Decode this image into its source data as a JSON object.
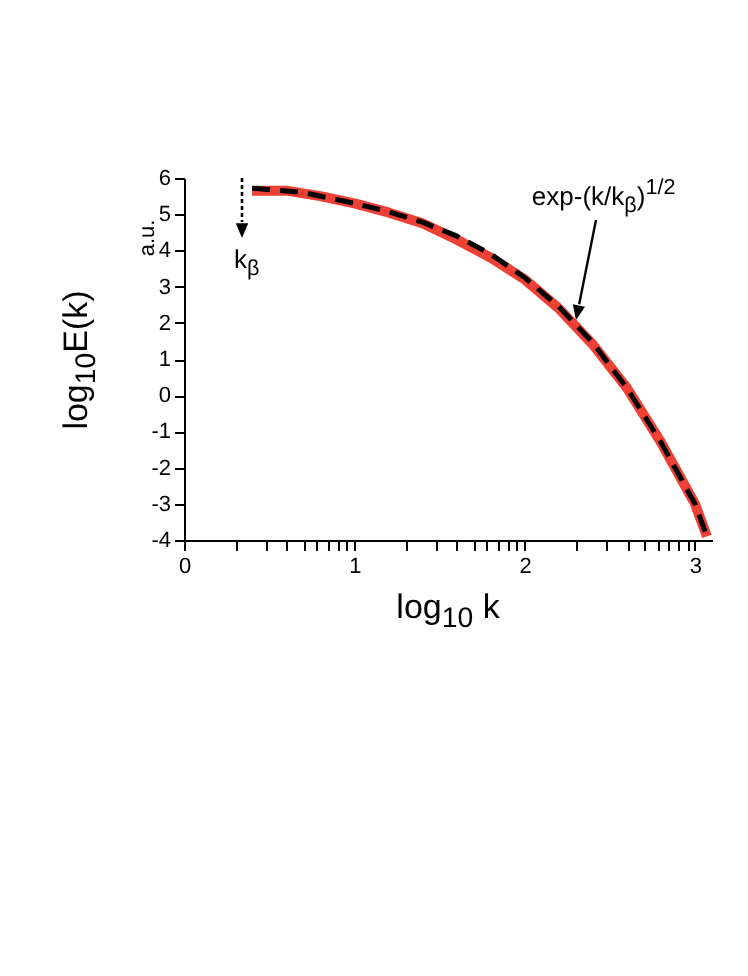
{
  "chart_data": {
    "type": "line",
    "xlabel": "log$_{10}$ k",
    "ylabel": "log$_{10}$E(k)",
    "xlim": [
      0,
      3.1
    ],
    "ylim": [
      -4,
      6
    ],
    "xticks": [
      0,
      {
        "value": 0.301,
        "label": null
      },
      {
        "value": 0.477,
        "label": null
      },
      {
        "value": 0.602,
        "label": null
      },
      {
        "value": 0.699,
        "label": null
      },
      {
        "value": 0.778,
        "label": null
      },
      {
        "value": 0.845,
        "label": null
      },
      {
        "value": 0.903,
        "label": null
      },
      {
        "value": 0.954,
        "label": null
      },
      1,
      {
        "value": 1.301,
        "label": null
      },
      {
        "value": 1.477,
        "label": null
      },
      {
        "value": 1.602,
        "label": null
      },
      {
        "value": 1.699,
        "label": null
      },
      {
        "value": 1.778,
        "label": null
      },
      {
        "value": 1.845,
        "label": null
      },
      {
        "value": 1.903,
        "label": null
      },
      {
        "value": 1.954,
        "label": null
      },
      2,
      {
        "value": 2.301,
        "label": null
      },
      {
        "value": 2.477,
        "label": null
      },
      {
        "value": 2.602,
        "label": null
      },
      {
        "value": 2.699,
        "label": null
      },
      {
        "value": 2.778,
        "label": null
      },
      {
        "value": 2.845,
        "label": null
      },
      {
        "value": 2.903,
        "label": null
      },
      {
        "value": 2.954,
        "label": null
      },
      3
    ],
    "yticks": [
      -4,
      -3,
      -2,
      -1,
      0,
      1,
      2,
      3,
      4,
      5,
      6
    ],
    "grid": false,
    "marker": "none",
    "series": [
      {
        "color": "#ee4035",
        "line_style": "solid",
        "x": [
          0.4,
          0.6,
          0.8,
          1.0,
          1.2,
          1.4,
          1.6,
          1.8,
          2.0,
          2.2,
          2.4,
          2.6,
          2.8,
          3.0,
          3.07
        ],
        "values": [
          5.65,
          5.65,
          5.5,
          5.3,
          5.05,
          4.75,
          4.3,
          3.8,
          3.2,
          2.4,
          1.4,
          0.2,
          -1.3,
          -3.0,
          -3.9
        ]
      },
      {
        "color": "#000000",
        "line_style": "dashed",
        "x": [
          0.4,
          0.7,
          1.0,
          1.2,
          1.4,
          1.6,
          1.8,
          2.0,
          2.2,
          2.4,
          2.6,
          2.8,
          3.0,
          3.07
        ],
        "values": [
          5.72,
          5.6,
          5.3,
          5.07,
          4.78,
          4.4,
          3.9,
          3.25,
          2.45,
          1.45,
          0.2,
          -1.3,
          -3.0,
          -3.9
        ]
      }
    ],
    "annotations": [
      "k$_{β}$",
      {
        "text": "exp-(k/k$_{β}$)$^{1/2}$",
        "x": 2.3,
        "y": 2.1
      },
      "a.u."
    ]
  }
}
